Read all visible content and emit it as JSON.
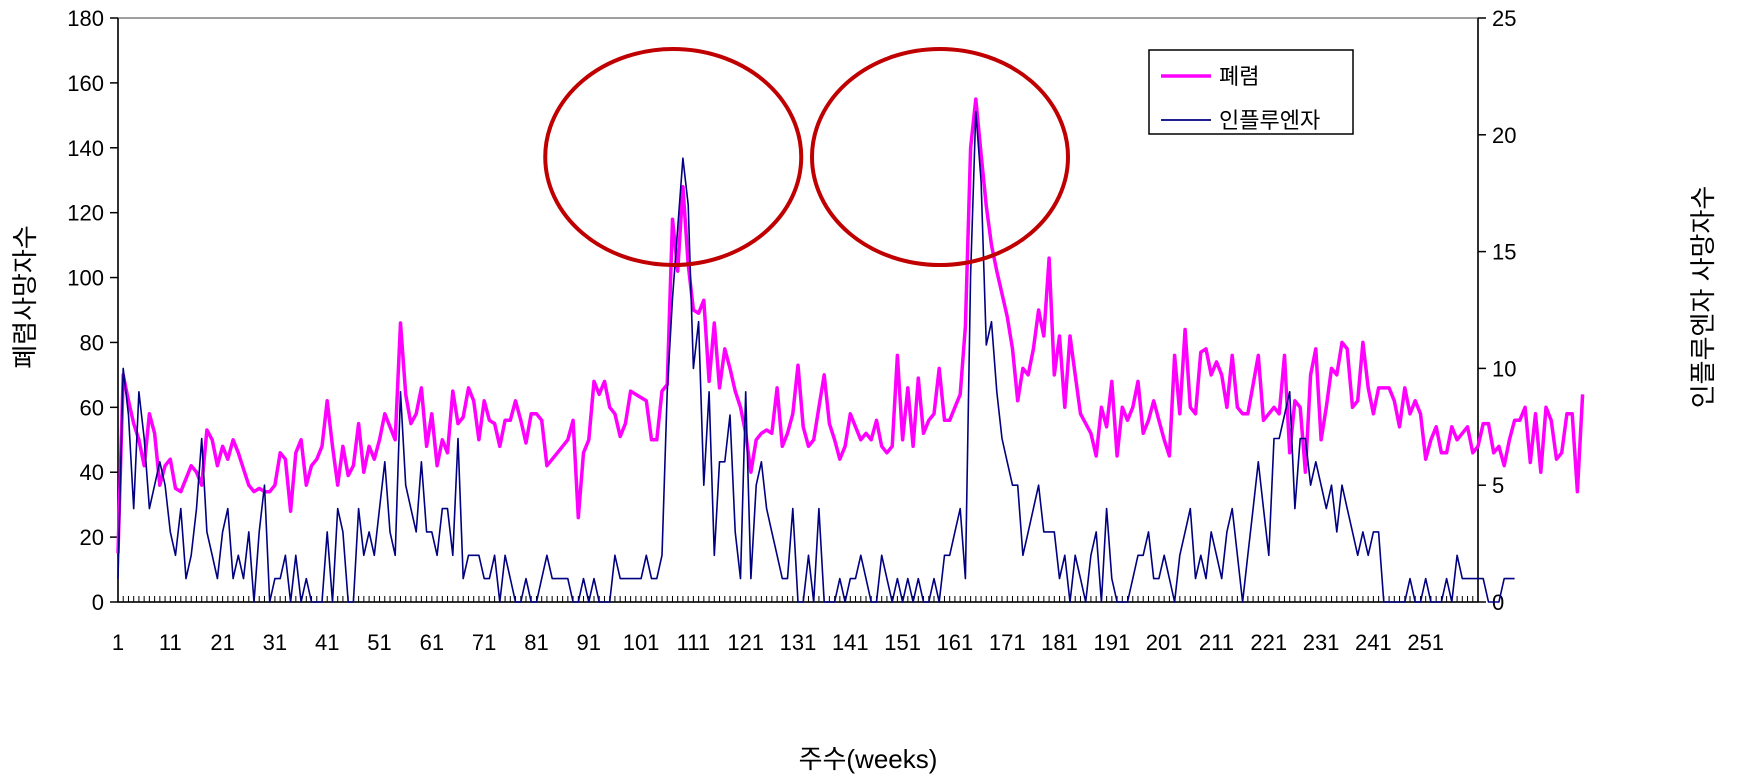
{
  "colors": {
    "pneumonia": "#ff00ff",
    "influenza": "#000080",
    "highlight": "#c00000",
    "axis": "#000000"
  },
  "chart_data": {
    "type": "line",
    "xlabel": "주수(weeks)",
    "ylabel_left": "폐렴사망자수",
    "ylabel_right": "인플루엔자 사망자수",
    "x_ticks": [
      "1",
      "11",
      "21",
      "31",
      "41",
      "51",
      "61",
      "71",
      "81",
      "91",
      "101",
      "111",
      "121",
      "131",
      "141",
      "151",
      "161",
      "171",
      "181",
      "191",
      "201",
      "211",
      "221",
      "231",
      "241",
      "251"
    ],
    "y_left_ticks": [
      "0",
      "20",
      "40",
      "60",
      "80",
      "100",
      "120",
      "140",
      "160",
      "180"
    ],
    "y_right_ticks": [
      "0",
      "5",
      "10",
      "15",
      "20",
      "25"
    ],
    "ylim_left": [
      0,
      180
    ],
    "ylim_right": [
      0,
      25
    ],
    "xlim": [
      1,
      261
    ],
    "legend_position": "top-right",
    "highlights": [
      {
        "label": "",
        "center_week": 106
      },
      {
        "label": "",
        "center_week": 157
      }
    ],
    "series": [
      {
        "name": "폐렴",
        "axis": "left",
        "values": [
          15,
          70,
          62,
          55,
          50,
          42,
          58,
          52,
          36,
          42,
          44,
          35,
          34,
          38,
          42,
          40,
          36,
          53,
          50,
          42,
          48,
          44,
          50,
          46,
          41,
          36,
          34,
          35,
          34,
          34,
          36,
          46,
          44,
          28,
          46,
          50,
          36,
          42,
          44,
          48,
          62,
          48,
          36,
          48,
          39,
          42,
          55,
          40,
          48,
          44,
          50,
          58,
          54,
          50,
          86,
          64,
          55,
          58,
          66,
          48,
          58,
          42,
          50,
          46,
          65,
          55,
          57,
          66,
          62,
          50,
          62,
          56,
          55,
          48,
          56,
          56,
          62,
          56,
          49,
          58,
          58,
          56,
          42,
          44,
          46,
          48,
          50,
          56,
          26,
          46,
          50,
          68,
          64,
          68,
          60,
          58,
          51,
          55,
          65,
          64,
          63,
          62,
          50,
          50,
          65,
          67,
          118,
          102,
          128,
          104,
          90,
          89,
          93,
          68,
          86,
          66,
          78,
          72,
          65,
          60,
          52,
          40,
          50,
          52,
          53,
          52,
          66,
          48,
          52,
          58,
          73,
          54,
          48,
          50,
          60,
          70,
          55,
          50,
          44,
          48,
          58,
          54,
          50,
          52,
          50,
          56,
          48,
          46,
          48,
          76,
          50,
          66,
          48,
          69,
          52,
          56,
          58,
          72,
          56,
          56,
          60,
          64,
          85,
          140,
          155,
          138,
          122,
          110,
          102,
          95,
          88,
          78,
          62,
          72,
          70,
          78,
          90,
          82,
          106,
          70,
          82,
          60,
          82,
          70,
          58,
          55,
          52,
          45,
          60,
          54,
          68,
          45,
          60,
          56,
          60,
          68,
          52,
          56,
          62,
          56,
          50,
          45,
          76,
          58,
          84,
          60,
          58,
          77,
          78,
          70,
          74,
          70,
          60,
          76,
          60,
          58,
          58,
          67,
          76,
          56,
          58,
          60,
          58,
          76,
          46,
          62,
          60,
          40,
          70,
          78,
          50,
          60,
          72,
          70,
          80,
          78,
          60,
          62,
          80,
          66,
          58,
          66,
          66,
          66,
          62,
          54,
          66,
          58,
          62,
          58,
          44,
          50,
          54,
          46,
          46,
          54,
          50,
          52,
          54,
          46,
          48,
          55,
          55,
          46,
          48,
          42,
          50,
          56,
          56,
          60,
          43,
          58,
          40,
          60,
          56,
          44,
          46,
          58,
          58,
          34,
          64
        ]
      },
      {
        "name": "인플루엔자",
        "axis": "right",
        "values": [
          1,
          10,
          8,
          4,
          9,
          7,
          4,
          5,
          6,
          5,
          3,
          2,
          4,
          1,
          2,
          4,
          7,
          3,
          2,
          1,
          3,
          4,
          1,
          2,
          1,
          3,
          0,
          3,
          5,
          0,
          1,
          1,
          2,
          0,
          2,
          0,
          1,
          0,
          0,
          0,
          3,
          0,
          4,
          3,
          0,
          0,
          4,
          2,
          3,
          2,
          4,
          6,
          3,
          2,
          9,
          5,
          4,
          3,
          6,
          3,
          3,
          2,
          4,
          4,
          2,
          7,
          1,
          2,
          2,
          2,
          1,
          1,
          2,
          0,
          2,
          1,
          0,
          0,
          1,
          0,
          0,
          1,
          2,
          1,
          1,
          1,
          1,
          0,
          0,
          1,
          0,
          1,
          0,
          0,
          0,
          2,
          1,
          1,
          1,
          1,
          1,
          2,
          1,
          1,
          2,
          9,
          13,
          16,
          19,
          17,
          10,
          12,
          5,
          9,
          2,
          6,
          6,
          8,
          3,
          1,
          9,
          1,
          5,
          6,
          4,
          3,
          2,
          1,
          1,
          4,
          0,
          0,
          2,
          0,
          4,
          0,
          0,
          0,
          1,
          0,
          1,
          1,
          2,
          1,
          0,
          0,
          2,
          1,
          0,
          1,
          0,
          1,
          0,
          1,
          0,
          0,
          1,
          0,
          2,
          2,
          3,
          4,
          1,
          14,
          21,
          18,
          11,
          12,
          9,
          7,
          6,
          5,
          5,
          2,
          3,
          4,
          5,
          3,
          3,
          3,
          1,
          2,
          0,
          2,
          1,
          0,
          2,
          3,
          0,
          4,
          1,
          0,
          0,
          0,
          1,
          2,
          2,
          3,
          1,
          1,
          2,
          1,
          0,
          2,
          3,
          4,
          1,
          2,
          1,
          3,
          2,
          1,
          3,
          4,
          2,
          0,
          2,
          4,
          6,
          4,
          2,
          7,
          7,
          8,
          9,
          4,
          7,
          7,
          5,
          6,
          5,
          4,
          5,
          3,
          5,
          4,
          3,
          2,
          3,
          2,
          3,
          3,
          0,
          0,
          0,
          0,
          0,
          1,
          0,
          0,
          1,
          0,
          0,
          0,
          1,
          0,
          2,
          1,
          1,
          1,
          1,
          1,
          0,
          0,
          0,
          1,
          1,
          1
        ]
      }
    ]
  }
}
